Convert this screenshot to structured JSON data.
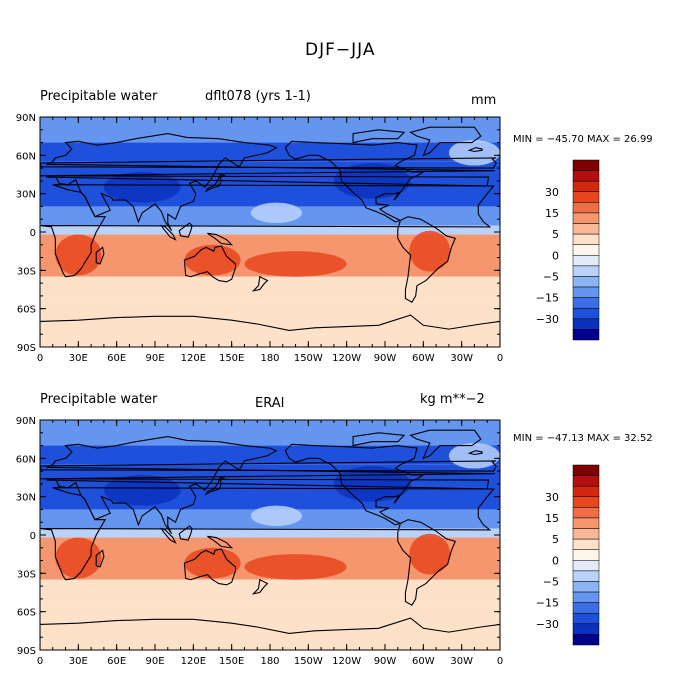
{
  "figure": {
    "title": "DJF−JJA"
  },
  "panels": [
    {
      "left_label": "Precipitable water",
      "center_label": "dflt078 (yrs 1-1)",
      "units": "mm",
      "stats": "MIN = −45.70 MAX =  26.99"
    },
    {
      "left_label": "Precipitable water",
      "center_label": "ERAI",
      "units": "kg m**−2",
      "stats": "MIN = −47.13 MAX =  32.52"
    }
  ],
  "axes": {
    "lat_labels": [
      "90N",
      "60N",
      "30N",
      "0",
      "30S",
      "60S",
      "90S"
    ],
    "lon_labels": [
      "0",
      "30E",
      "60E",
      "90E",
      "120E",
      "150E",
      "180",
      "150W",
      "120W",
      "90W",
      "60W",
      "30W",
      "0"
    ]
  },
  "colorbar": {
    "labels": [
      "30",
      "15",
      "5",
      "0",
      "−5",
      "−15",
      "−30"
    ],
    "colors": [
      "#7f0000",
      "#b40f0f",
      "#d2280f",
      "#e8461e",
      "#f06e46",
      "#f5966e",
      "#fab996",
      "#fde1c8",
      "#fff5eb",
      "#e1ebfa",
      "#b9d2fa",
      "#8cb4f5",
      "#6496f0",
      "#3c6ee6",
      "#1e50dc",
      "#0a32be",
      "#00008c"
    ]
  },
  "map_palette": {
    "ocean_neg_strong": "#1e50dc",
    "ocean_neg": "#6496f0",
    "light_neg": "#b9d2fa",
    "neutral": "#fde1c8",
    "pos": "#f5966e",
    "pos_strong": "#e8461e"
  }
}
